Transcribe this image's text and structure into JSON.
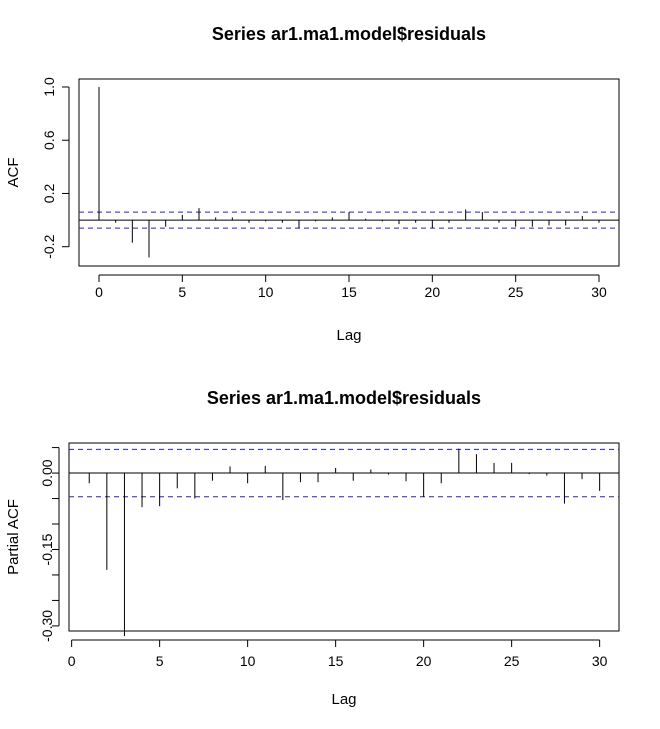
{
  "chart_data": [
    {
      "type": "bar",
      "title": "Series  ar1.ma1.model$residuals",
      "xlabel": "Lag",
      "ylabel": "ACF",
      "xlim": [
        -1.2,
        31.2
      ],
      "ylim": [
        -0.345,
        1.06
      ],
      "xticks": [
        0,
        5,
        10,
        15,
        20,
        25,
        30
      ],
      "yticks": [
        -0.2,
        0.2,
        0.6,
        1.0
      ],
      "ytick_labels": [
        "-0.2",
        "0.2",
        "0.6",
        "1.0"
      ],
      "confidence_bound": 0.06,
      "colors": {
        "bars": "#000000",
        "confidence": "#2222cc"
      },
      "lags": [
        0,
        1,
        2,
        3,
        4,
        5,
        6,
        7,
        8,
        9,
        10,
        11,
        12,
        13,
        14,
        15,
        16,
        17,
        18,
        19,
        20,
        21,
        22,
        23,
        24,
        25,
        26,
        27,
        28,
        29,
        30
      ],
      "values": [
        1.0,
        -0.02,
        -0.17,
        -0.28,
        -0.05,
        0.04,
        0.09,
        0.02,
        0.02,
        -0.02,
        -0.01,
        -0.02,
        -0.06,
        -0.01,
        0.02,
        0.06,
        0.01,
        -0.01,
        -0.03,
        -0.02,
        -0.06,
        -0.02,
        0.08,
        0.06,
        -0.02,
        -0.05,
        -0.05,
        -0.04,
        -0.04,
        0.03,
        -0.02
      ]
    },
    {
      "type": "bar",
      "title": "Series  ar1.ma1.model$residuals",
      "xlabel": "Lag",
      "ylabel": "Partial ACF",
      "xlim": [
        -0.15,
        31.1
      ],
      "ylim": [
        -0.31,
        0.059
      ],
      "xticks": [
        0,
        5,
        10,
        15,
        20,
        25,
        30
      ],
      "yticks": [
        -0.3,
        -0.15,
        0.0
      ],
      "ytick_labels": [
        "-0.30",
        "-0.15",
        "0.00"
      ],
      "minor_yticks": [
        -0.25,
        -0.2,
        -0.1,
        -0.05,
        0.05
      ],
      "confidence_bound": 0.0465,
      "colors": {
        "bars": "#000000",
        "confidence": "#2222cc"
      },
      "lags": [
        1,
        2,
        3,
        4,
        5,
        6,
        7,
        8,
        9,
        10,
        11,
        12,
        13,
        14,
        15,
        16,
        17,
        18,
        19,
        20,
        21,
        22,
        23,
        24,
        25,
        26,
        27,
        28,
        29,
        30
      ],
      "values": [
        -0.02,
        -0.19,
        -0.32,
        -0.067,
        -0.065,
        -0.03,
        -0.05,
        -0.015,
        0.013,
        -0.02,
        0.014,
        -0.053,
        -0.018,
        -0.018,
        0.01,
        -0.015,
        0.007,
        -0.003,
        -0.016,
        -0.047,
        -0.02,
        0.048,
        0.037,
        0.02,
        0.02,
        -0.002,
        -0.005,
        -0.06,
        -0.012,
        -0.035
      ]
    }
  ]
}
